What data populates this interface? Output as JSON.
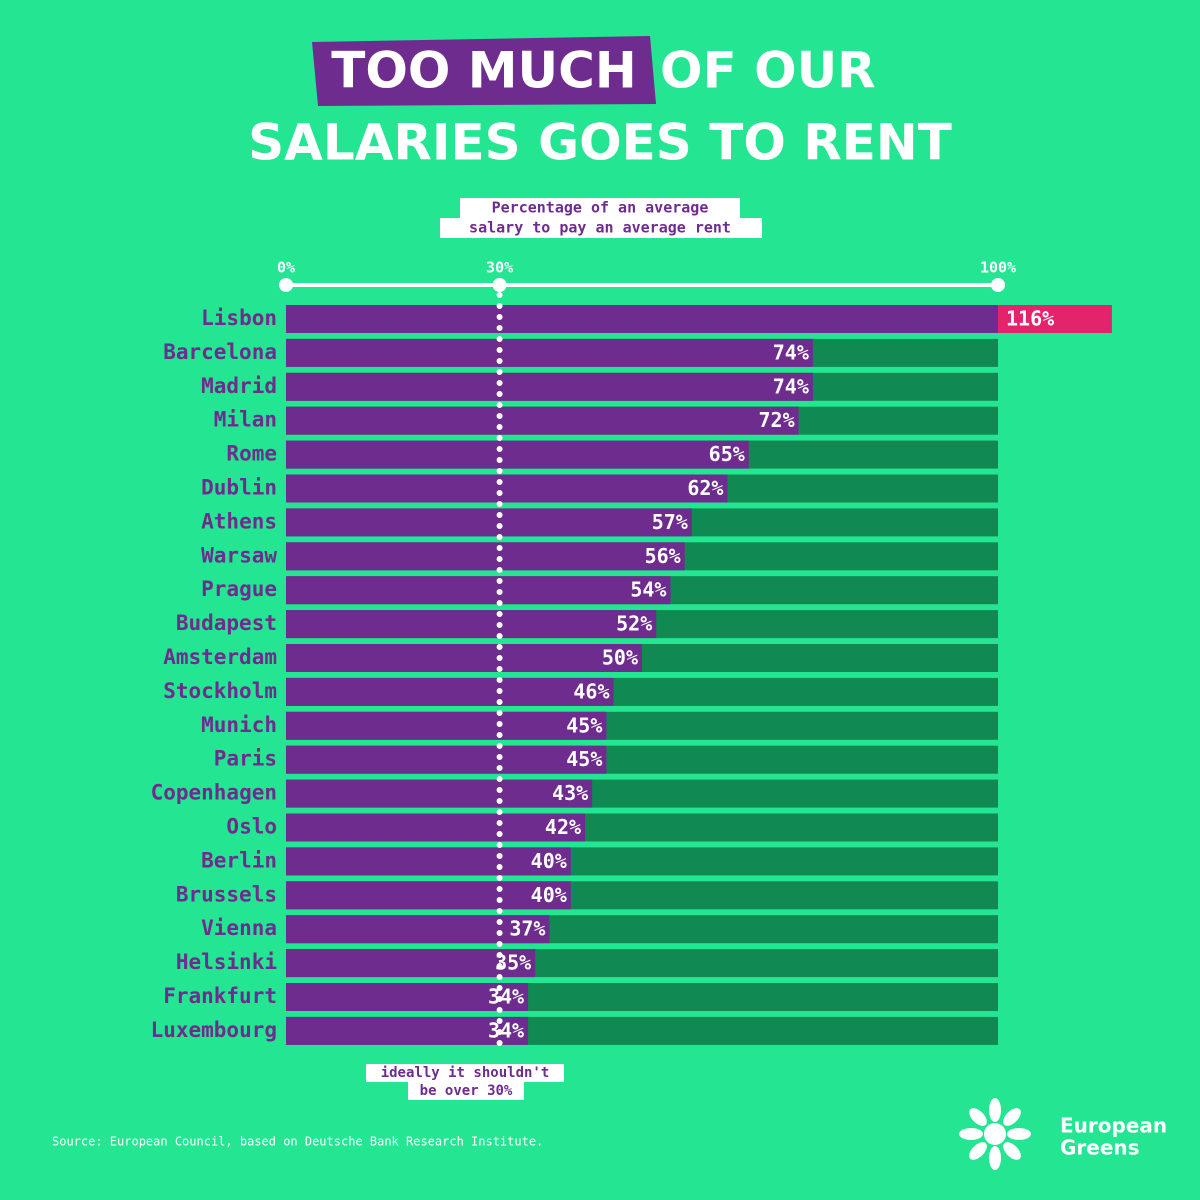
{
  "chart_data": {
    "type": "bar",
    "title_parts": [
      "TOO MUCH",
      "OF OUR",
      "SALARIES GOES TO RENT"
    ],
    "subtitle_lines": [
      "Percentage of an average",
      "salary to pay an average rent"
    ],
    "annotation_lines": [
      "ideally it shouldn't",
      "be over 30%"
    ],
    "source": "Source: European Council, based on Deutsche Bank Research Institute.",
    "logo_lines": [
      "European",
      "Greens"
    ],
    "categories": [
      "Lisbon",
      "Barcelona",
      "Madrid",
      "Milan",
      "Rome",
      "Dublin",
      "Athens",
      "Warsaw",
      "Prague",
      "Budapest",
      "Amsterdam",
      "Stockholm",
      "Munich",
      "Paris",
      "Copenhagen",
      "Oslo",
      "Berlin",
      "Brussels",
      "Vienna",
      "Helsinki",
      "Frankfurt",
      "Luxembourg"
    ],
    "values": [
      116,
      74,
      74,
      72,
      65,
      62,
      57,
      56,
      54,
      52,
      50,
      46,
      45,
      45,
      43,
      42,
      40,
      40,
      37,
      35,
      34,
      34
    ],
    "value_labels": [
      "116%",
      "74%",
      "74%",
      "72%",
      "65%",
      "62%",
      "57%",
      "56%",
      "54%",
      "52%",
      "50%",
      "46%",
      "45%",
      "45%",
      "43%",
      "42%",
      "40%",
      "40%",
      "37%",
      "35%",
      "34%",
      "34%"
    ],
    "xlim": [
      0,
      100
    ],
    "xticks": [
      {
        "value": 0,
        "label": "0%"
      },
      {
        "value": 30,
        "label": "30%"
      },
      {
        "value": 100,
        "label": "100%"
      }
    ],
    "color": "#6e2d8e",
    "track_color": "#108a52",
    "overflow_color": "#e3246c",
    "background": "#23e592"
  }
}
